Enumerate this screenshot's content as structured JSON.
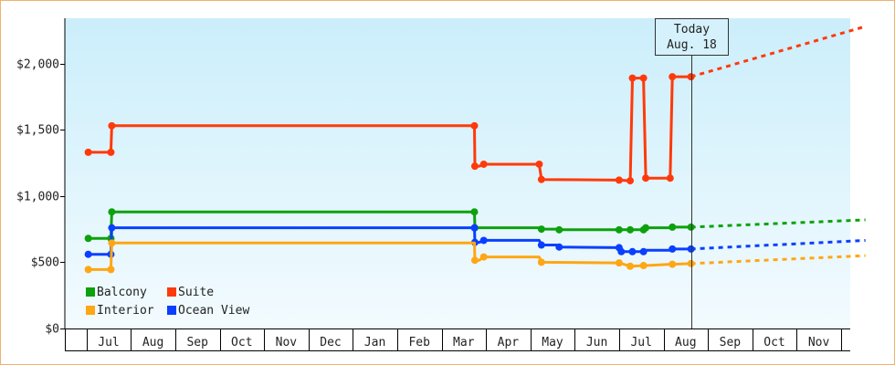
{
  "chart_data": {
    "type": "line",
    "title": "",
    "xlabel": "",
    "ylabel": "",
    "y_ticks": [
      "$0",
      "$500",
      "$1,000",
      "$1,500",
      "$2,000"
    ],
    "ylim": [
      0,
      2300
    ],
    "x_ticks": [
      "Jul",
      "Aug",
      "Sep",
      "Oct",
      "Nov",
      "Dec",
      "Jan",
      "Feb",
      "Mar",
      "Apr",
      "May",
      "Jun",
      "Jul",
      "Aug",
      "Sep",
      "Oct",
      "Nov"
    ],
    "today_label": [
      "Today",
      "Aug. 18"
    ],
    "today_month": 13.12,
    "legend": {
      "placement": "bottom-left"
    },
    "series": [
      {
        "name": "Suite",
        "color": "#ff3a0a",
        "points": [
          [
            -0.46,
            1330
          ],
          [
            0.05,
            1330
          ],
          [
            0.07,
            1530
          ],
          [
            8.24,
            1530
          ],
          [
            8.25,
            1225
          ],
          [
            8.35,
            1225
          ],
          [
            8.45,
            1240
          ],
          [
            9.7,
            1240
          ],
          [
            9.75,
            1125
          ],
          [
            11.5,
            1120
          ],
          [
            11.75,
            1115
          ],
          [
            11.8,
            1890
          ],
          [
            12.05,
            1890
          ],
          [
            12.1,
            1135
          ],
          [
            12.65,
            1135
          ],
          [
            12.7,
            1900
          ],
          [
            13.12,
            1900
          ]
        ],
        "markers": [
          [
            -0.46,
            1330
          ],
          [
            0.05,
            1330
          ],
          [
            0.07,
            1530
          ],
          [
            8.24,
            1530
          ],
          [
            8.25,
            1225
          ],
          [
            8.45,
            1240
          ],
          [
            9.7,
            1240
          ],
          [
            9.75,
            1125
          ],
          [
            11.5,
            1120
          ],
          [
            11.75,
            1115
          ],
          [
            11.8,
            1890
          ],
          [
            12.05,
            1890
          ],
          [
            12.1,
            1135
          ],
          [
            12.65,
            1135
          ],
          [
            12.7,
            1900
          ],
          [
            13.12,
            1900
          ]
        ],
        "forecast": [
          [
            13.12,
            1900
          ],
          [
            17.05,
            2280
          ]
        ]
      },
      {
        "name": "Balcony",
        "color": "#0da10d",
        "points": [
          [
            -0.46,
            680
          ],
          [
            0.05,
            680
          ],
          [
            0.07,
            880
          ],
          [
            8.24,
            880
          ],
          [
            8.25,
            760
          ],
          [
            9.7,
            760
          ],
          [
            9.75,
            750
          ],
          [
            10.1,
            750
          ],
          [
            10.15,
            745
          ],
          [
            11.5,
            745
          ],
          [
            11.75,
            745
          ],
          [
            11.8,
            745
          ],
          [
            12.05,
            745
          ],
          [
            12.1,
            760
          ],
          [
            12.65,
            760
          ],
          [
            12.7,
            765
          ],
          [
            13.12,
            765
          ]
        ],
        "markers": [
          [
            -0.46,
            680
          ],
          [
            0.05,
            680
          ],
          [
            0.07,
            880
          ],
          [
            8.24,
            880
          ],
          [
            8.25,
            760
          ],
          [
            9.75,
            750
          ],
          [
            10.15,
            745
          ],
          [
            11.5,
            745
          ],
          [
            11.75,
            745
          ],
          [
            12.05,
            745
          ],
          [
            12.1,
            760
          ],
          [
            12.7,
            765
          ],
          [
            13.12,
            765
          ]
        ],
        "forecast": [
          [
            13.12,
            765
          ],
          [
            17.05,
            820
          ]
        ]
      },
      {
        "name": "Ocean View",
        "color": "#0a3fff",
        "points": [
          [
            -0.46,
            560
          ],
          [
            0.05,
            560
          ],
          [
            0.07,
            760
          ],
          [
            8.24,
            760
          ],
          [
            8.25,
            650
          ],
          [
            8.35,
            650
          ],
          [
            8.45,
            665
          ],
          [
            9.7,
            665
          ],
          [
            9.75,
            630
          ],
          [
            10.1,
            630
          ],
          [
            10.15,
            615
          ],
          [
            11.5,
            610
          ],
          [
            11.55,
            580
          ],
          [
            11.75,
            580
          ],
          [
            11.8,
            580
          ],
          [
            12.05,
            580
          ],
          [
            12.1,
            590
          ],
          [
            12.65,
            590
          ],
          [
            12.7,
            600
          ],
          [
            13.12,
            600
          ]
        ],
        "markers": [
          [
            -0.46,
            560
          ],
          [
            0.05,
            560
          ],
          [
            0.07,
            760
          ],
          [
            8.24,
            760
          ],
          [
            8.25,
            650
          ],
          [
            8.45,
            665
          ],
          [
            9.75,
            630
          ],
          [
            10.15,
            615
          ],
          [
            11.5,
            610
          ],
          [
            11.55,
            580
          ],
          [
            11.8,
            580
          ],
          [
            12.05,
            580
          ],
          [
            12.7,
            600
          ],
          [
            13.12,
            600
          ]
        ],
        "forecast": [
          [
            13.12,
            600
          ],
          [
            17.05,
            665
          ]
        ]
      },
      {
        "name": "Interior",
        "color": "#ffa614",
        "points": [
          [
            -0.46,
            445
          ],
          [
            0.05,
            445
          ],
          [
            0.07,
            645
          ],
          [
            8.24,
            645
          ],
          [
            8.25,
            515
          ],
          [
            8.35,
            515
          ],
          [
            8.45,
            540
          ],
          [
            9.7,
            540
          ],
          [
            9.75,
            500
          ],
          [
            11.5,
            495
          ],
          [
            11.75,
            470
          ],
          [
            11.8,
            470
          ],
          [
            12.05,
            475
          ],
          [
            12.1,
            475
          ],
          [
            12.65,
            485
          ],
          [
            12.7,
            485
          ],
          [
            13.12,
            490
          ]
        ],
        "markers": [
          [
            -0.46,
            445
          ],
          [
            0.05,
            445
          ],
          [
            0.07,
            645
          ],
          [
            8.25,
            515
          ],
          [
            8.45,
            540
          ],
          [
            9.75,
            500
          ],
          [
            11.5,
            495
          ],
          [
            11.75,
            470
          ],
          [
            12.05,
            475
          ],
          [
            12.7,
            485
          ],
          [
            13.12,
            490
          ]
        ],
        "forecast": [
          [
            13.12,
            490
          ],
          [
            17.05,
            550
          ]
        ]
      }
    ],
    "legend_entries": [
      {
        "label": "Balcony",
        "color": "#0da10d"
      },
      {
        "label": "Suite",
        "color": "#ff3a0a"
      },
      {
        "label": "Interior",
        "color": "#ffa614"
      },
      {
        "label": "Ocean View",
        "color": "#0a3fff"
      }
    ],
    "colors": {
      "plot_top": "#cbeefb",
      "plot_bottom": "#f3fbfe",
      "frame_border": "#f0b070"
    }
  }
}
